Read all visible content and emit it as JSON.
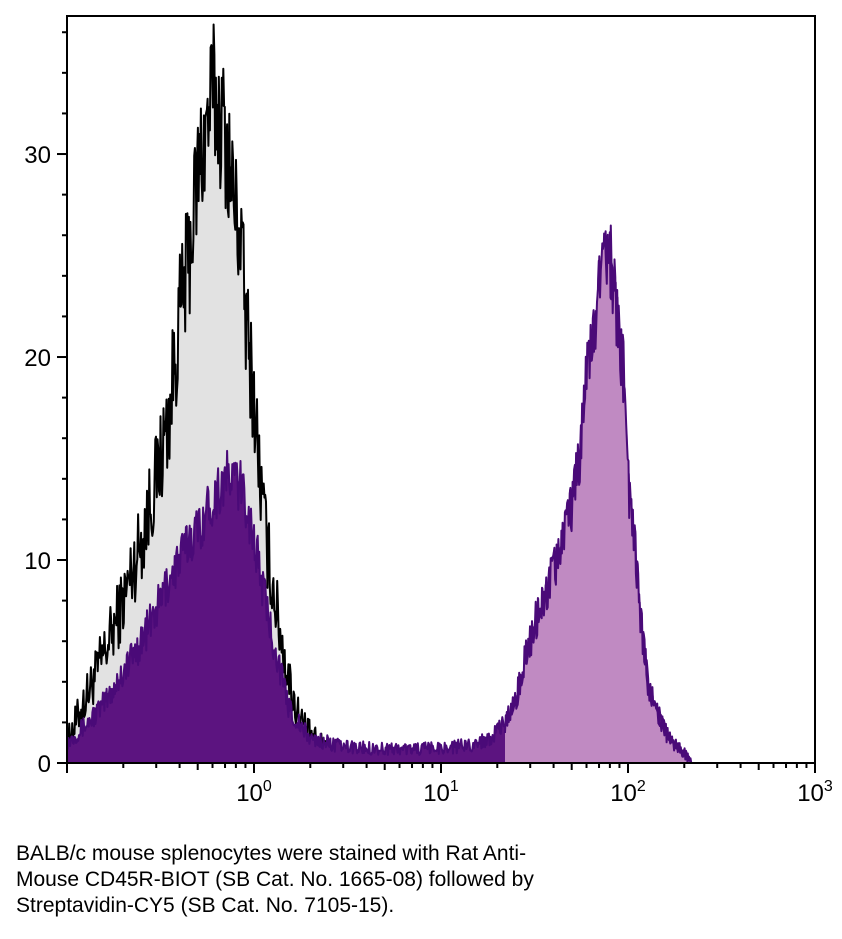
{
  "chart_data": {
    "type": "area",
    "x_scale": "log",
    "xlim": [
      0.1,
      1000
    ],
    "ylim": [
      0,
      36.8
    ],
    "grid": false,
    "legend": "none",
    "x_ticks": [
      {
        "value": 1,
        "base": "10",
        "exp": "0"
      },
      {
        "value": 10,
        "base": "10",
        "exp": "1"
      },
      {
        "value": 100,
        "base": "10",
        "exp": "2"
      },
      {
        "value": 1000,
        "base": "10",
        "exp": "3"
      }
    ],
    "y_ticks": [
      {
        "value": 0,
        "label": "0"
      },
      {
        "value": 10,
        "label": "10"
      },
      {
        "value": 20,
        "label": "20"
      },
      {
        "value": 30,
        "label": "30"
      }
    ],
    "series": [
      {
        "fill": "#e2e2e2",
        "stroke": "#000000",
        "noise": 2.2,
        "x": [
          0.1,
          0.13,
          0.16,
          0.2,
          0.25,
          0.3,
          0.35,
          0.4,
          0.45,
          0.5,
          0.55,
          0.6,
          0.65,
          0.7,
          0.75,
          0.8,
          0.85,
          0.9,
          1.0,
          1.1,
          1.2,
          1.35,
          1.5,
          1.7,
          2.0,
          2.5,
          3.0,
          4.0,
          6.0,
          10.0,
          30.0,
          80.0,
          200.0
        ],
        "y": [
          1,
          3.5,
          5.5,
          8,
          11,
          14,
          17,
          22,
          25,
          29,
          31,
          33,
          32,
          31,
          29,
          27,
          26,
          22,
          18,
          13,
          10,
          7,
          4.5,
          2.5,
          1.3,
          0.6,
          0.3,
          0.1,
          0,
          0,
          0,
          0,
          0
        ]
      },
      {
        "fill": "#5c1480",
        "stroke": "#4a0a78",
        "noise": 1.3,
        "x": [
          0.1,
          0.13,
          0.16,
          0.2,
          0.25,
          0.3,
          0.35,
          0.4,
          0.45,
          0.5,
          0.6,
          0.7,
          0.8,
          0.9,
          1.0,
          1.1,
          1.2,
          1.35,
          1.5,
          1.7,
          2.0,
          3.0,
          5.0,
          8.0,
          12.0,
          16.0,
          20.0,
          22.0,
          25.0,
          28.0,
          32.0,
          36.0,
          40.0,
          45.0,
          50.0,
          55.0,
          60.0,
          65.0,
          70.0,
          75.0,
          80.0,
          85.0,
          90.0,
          95.0,
          100.0,
          110.0,
          120.0,
          130.0,
          150.0,
          170.0,
          200.0,
          220.0
        ],
        "y": [
          1,
          2,
          3,
          4.5,
          6,
          7.5,
          9,
          10,
          11,
          11.5,
          13,
          14,
          14,
          13,
          11,
          9,
          7,
          5,
          3,
          2,
          1.2,
          0.8,
          0.7,
          0.7,
          0.8,
          1.0,
          1.5,
          2,
          3,
          5,
          7,
          8,
          9.5,
          11,
          12.5,
          15,
          19,
          21,
          23.5,
          25,
          25,
          23,
          21,
          19,
          14,
          10,
          6,
          3.5,
          2,
          1,
          0.5,
          0
        ]
      },
      {
        "fill": "#c08ac2",
        "stroke": "#4a0a78",
        "noise": 1.3,
        "clip_x": 22,
        "x": [
          0.1,
          0.13,
          0.16,
          0.2,
          0.25,
          0.3,
          0.35,
          0.4,
          0.45,
          0.5,
          0.6,
          0.7,
          0.8,
          0.9,
          1.0,
          1.1,
          1.2,
          1.35,
          1.5,
          1.7,
          2.0,
          3.0,
          5.0,
          8.0,
          12.0,
          16.0,
          20.0,
          22.0,
          25.0,
          28.0,
          32.0,
          36.0,
          40.0,
          45.0,
          50.0,
          55.0,
          60.0,
          65.0,
          70.0,
          75.0,
          80.0,
          85.0,
          90.0,
          95.0,
          100.0,
          110.0,
          120.0,
          130.0,
          150.0,
          170.0,
          200.0,
          220.0
        ],
        "y": [
          1,
          2,
          3,
          4.5,
          6,
          7.5,
          9,
          10,
          11,
          11.5,
          13,
          14,
          14,
          13,
          11,
          9,
          7,
          5,
          3,
          2,
          1.2,
          0.8,
          0.7,
          0.7,
          0.8,
          1.0,
          1.5,
          2,
          3,
          5,
          7,
          8,
          9.5,
          11,
          12.5,
          15,
          19,
          21,
          23.5,
          25,
          25,
          23,
          21,
          19,
          14,
          10,
          6,
          3.5,
          2,
          1,
          0.5,
          0
        ]
      }
    ]
  },
  "caption": {
    "line1": "BALB/c mouse splenocytes were stained with Rat Anti-",
    "line2": "Mouse CD45R-BIOT (SB Cat. No. 1665-08) followed by",
    "line3": "Streptavidin-CY5 (SB Cat. No. 7105-15)."
  }
}
